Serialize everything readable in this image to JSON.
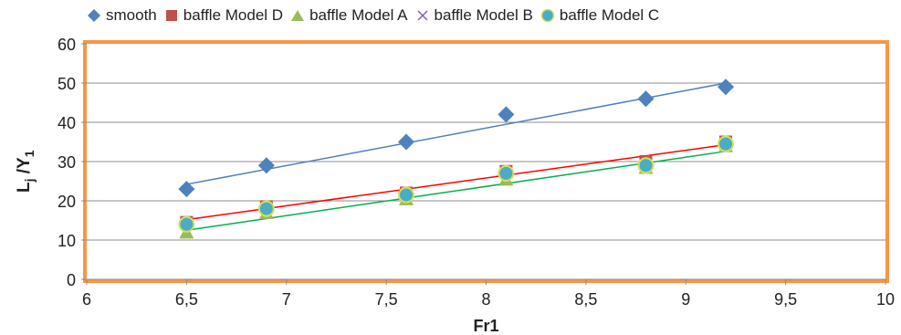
{
  "chart_data": {
    "type": "scatter",
    "title": "",
    "xlabel": "Fr1",
    "ylabel_main": "L",
    "ylabel_sub1": "j",
    "ylabel_mid": " /Y",
    "ylabel_sub2": "1",
    "xlim": [
      6,
      10
    ],
    "ylim": [
      0,
      60
    ],
    "x_ticks": [
      6,
      6.5,
      7,
      7.5,
      8,
      8.5,
      9,
      9.5,
      10
    ],
    "x_tick_labels": [
      "6",
      "6,5",
      "7",
      "7,5",
      "8",
      "8,5",
      "9",
      "9,5",
      "10"
    ],
    "y_ticks": [
      0,
      10,
      20,
      30,
      40,
      50,
      60
    ],
    "y_tick_labels": [
      "0",
      "10",
      "20",
      "30",
      "40",
      "50",
      "60"
    ],
    "grid": "horizontal",
    "legend_position": "top",
    "plot_border_color": "#F79646",
    "series": [
      {
        "name": "smooth",
        "marker": "diamond",
        "color": "#4F81BD",
        "x": [
          6.5,
          6.9,
          7.6,
          8.1,
          8.8,
          9.2
        ],
        "y": [
          23,
          29,
          35,
          42,
          46,
          49
        ],
        "trendline": {
          "color": "#4F81BD",
          "x": [
            6.5,
            9.2
          ],
          "y": [
            24.2,
            50.0
          ]
        }
      },
      {
        "name": "baffle Model D",
        "marker": "square",
        "color": "#C0504D",
        "x": [
          6.5,
          6.9,
          7.6,
          8.1,
          8.8,
          9.2
        ],
        "y": [
          14.5,
          18.5,
          22,
          27.5,
          30,
          35
        ],
        "trendline": {
          "color": "#FF0000",
          "x": [
            6.5,
            9.2
          ],
          "y": [
            15.2,
            34.3
          ]
        }
      },
      {
        "name": "baffle Model A",
        "marker": "triangle",
        "color": "#9BBB59",
        "x": [
          6.5,
          6.9,
          7.6,
          8.1,
          8.8,
          9.2
        ],
        "y": [
          12,
          17,
          20.5,
          25.5,
          28.5,
          34
        ],
        "trendline": {
          "color": "#00B050",
          "x": [
            6.5,
            9.2
          ],
          "y": [
            12.5,
            32.6
          ]
        }
      },
      {
        "name": "baffle Model B",
        "marker": "x",
        "color": "#8064A2",
        "x": [
          6.5,
          6.9,
          7.6,
          8.1,
          8.8,
          9.2
        ],
        "y": [
          14,
          18,
          21.5,
          27,
          29,
          34.5
        ]
      },
      {
        "name": "baffle Model C",
        "marker": "circle",
        "color": "#4BACC6",
        "edge": "#D4E157",
        "x": [
          6.5,
          6.9,
          7.6,
          8.1,
          8.8,
          9.2
        ],
        "y": [
          14,
          18,
          21.5,
          27,
          29,
          34.5
        ]
      }
    ]
  }
}
